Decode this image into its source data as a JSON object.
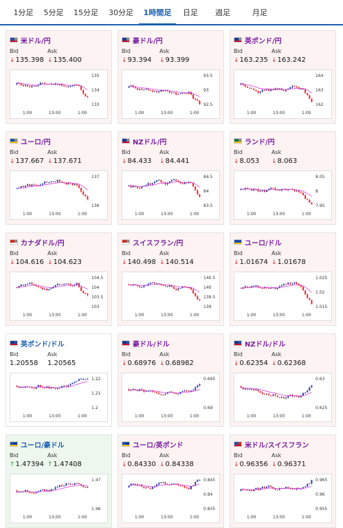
{
  "tabs": [
    {
      "label": "1分足",
      "active": false
    },
    {
      "label": "5分足",
      "active": false
    },
    {
      "label": "15分足",
      "active": false
    },
    {
      "label": "30分足",
      "active": false
    },
    {
      "label": "1時間足",
      "active": true
    },
    {
      "label": "日足",
      "active": false
    },
    {
      "label": "週足",
      "active": false
    },
    {
      "label": "月足",
      "active": false
    }
  ],
  "labels": {
    "bid": "Bid",
    "ask": "Ask"
  },
  "colors": {
    "up": "#2a9d3a",
    "down": "#d9272e",
    "candle_up": "#e8262b",
    "candle_down": "#2a3aa8",
    "ma": "#d23be0",
    "ma2": "#29a9d6"
  },
  "cards": [
    {
      "pair": "米ドル/円",
      "flag": "us-jp-flag-icon",
      "dir": "down",
      "bid": "135.398",
      "ask": "135.400",
      "x_labels": [
        "1:00",
        "13:00",
        "1:00"
      ],
      "y_labels": [
        "135",
        "134",
        "133"
      ]
    },
    {
      "pair": "豪ドル/円",
      "flag": "au-jp-flag-icon",
      "dir": "down",
      "bid": "93.394",
      "ask": "93.399",
      "x_labels": [
        "1:00",
        "13:00",
        "1:00"
      ],
      "y_labels": [
        "93.5",
        "93",
        "92.5"
      ]
    },
    {
      "pair": "英ポンド/円",
      "flag": "gb-jp-flag-icon",
      "dir": "down",
      "bid": "163.235",
      "ask": "163.242",
      "x_labels": [
        "1:00",
        "13:00",
        "1:00"
      ],
      "y_labels": [
        "164",
        "163",
        "162"
      ]
    },
    {
      "pair": "ユーロ/円",
      "flag": "eu-jp-flag-icon",
      "dir": "down",
      "bid": "137.667",
      "ask": "137.671",
      "x_labels": [
        "1:00",
        "13:00",
        "1:00"
      ],
      "y_labels": [
        "137",
        "136"
      ]
    },
    {
      "pair": "NZドル/円",
      "flag": "nz-jp-flag-icon",
      "dir": "down",
      "bid": "84.433",
      "ask": "84.441",
      "x_labels": [
        "1:00",
        "13:00",
        "1:00"
      ],
      "y_labels": [
        "84.5",
        "84",
        "83.5"
      ]
    },
    {
      "pair": "ランド/円",
      "flag": "za-jp-flag-icon",
      "dir": "down",
      "bid": "8.053",
      "ask": "8.063",
      "x_labels": [
        "1:00",
        "13:00",
        "1:00"
      ],
      "y_labels": [
        "8.05",
        "8",
        "7.95"
      ]
    },
    {
      "pair": "カナダドル/円",
      "flag": "ca-jp-flag-icon",
      "dir": "down",
      "bid": "104.616",
      "ask": "104.623",
      "x_labels": [
        "1:00",
        "13:00",
        "1:00"
      ],
      "y_labels": [
        "104.5",
        "104",
        "103.5",
        "103"
      ]
    },
    {
      "pair": "スイスフラン/円",
      "flag": "ch-jp-flag-icon",
      "dir": "down",
      "bid": "140.498",
      "ask": "140.514",
      "x_labels": [
        "1:00",
        "13:00",
        "1:00"
      ],
      "y_labels": [
        "140.5",
        "140",
        "139.5",
        "139"
      ]
    },
    {
      "pair": "ユーロ/ドル",
      "flag": "eu-us-flag-icon",
      "dir": "down",
      "bid": "1.01674",
      "ask": "1.01678",
      "x_labels": [
        "1:00",
        "13:00",
        "1:00"
      ],
      "y_labels": [
        "1.025",
        "1.02",
        "1.015"
      ]
    },
    {
      "pair": "英ポンド/ドル",
      "flag": "gb-us-flag-icon",
      "dir": "none",
      "bid": "1.20558",
      "ask": "1.20565",
      "x_labels": [
        "1:00",
        "13:00",
        "1:00"
      ],
      "y_labels": [
        "1.22",
        "1.21",
        "1.2"
      ]
    },
    {
      "pair": "豪ドル/ドル",
      "flag": "au-us-flag-icon",
      "dir": "down",
      "bid": "0.68976",
      "ask": "0.68982",
      "x_labels": [
        "1:00",
        "13:00",
        "1:00"
      ],
      "y_labels": [
        "0.695",
        "0.69"
      ]
    },
    {
      "pair": "NZドル/ドル",
      "flag": "nz-us-flag-icon",
      "dir": "down",
      "bid": "0.62354",
      "ask": "0.62368",
      "x_labels": [
        "1:00",
        "13:00",
        "1:00"
      ],
      "y_labels": [
        "0.63",
        "0.625"
      ]
    },
    {
      "pair": "ユーロ/豪ドル",
      "flag": "eu-au-flag-icon",
      "dir": "up",
      "bid": "1.47394",
      "ask": "1.47408",
      "x_labels": [
        "1:00",
        "13:00",
        "1:00"
      ],
      "y_labels": [
        "1.47",
        "1.46"
      ]
    },
    {
      "pair": "ユーロ/英ポンド",
      "flag": "eu-gb-flag-icon",
      "dir": "down",
      "bid": "0.84330",
      "ask": "0.84338",
      "x_labels": [
        "1:00",
        "13:00",
        "1:00"
      ],
      "y_labels": [
        "0.845",
        "0.84",
        "0.835"
      ]
    },
    {
      "pair": "米ドル/スイスフラン",
      "flag": "us-ch-flag-icon",
      "dir": "down",
      "bid": "0.96356",
      "ask": "0.96371",
      "x_labels": [
        "1:00",
        "13:00",
        "1:00"
      ],
      "y_labels": [
        "0.965",
        "0.96",
        "0.955"
      ]
    }
  ]
}
